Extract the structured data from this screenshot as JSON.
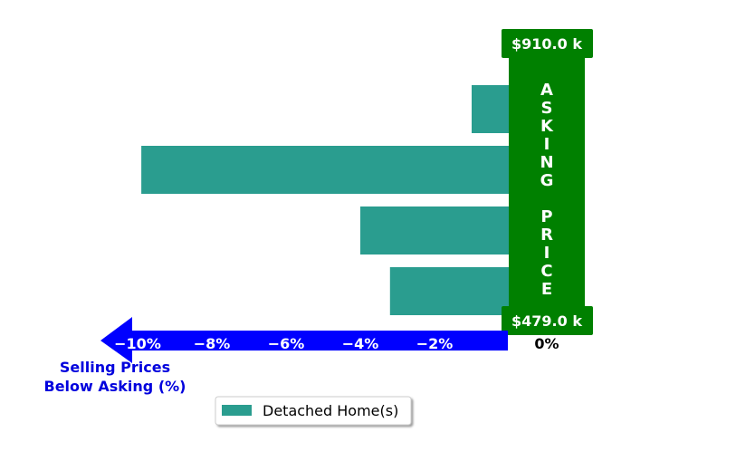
{
  "chart_data": {
    "type": "bar",
    "orientation": "horizontal",
    "series": [
      {
        "name": "Detached Home(s)",
        "values": [
          -1.0,
          -9.9,
          -4.0,
          -3.2
        ]
      }
    ],
    "xlim": [
      -11.0,
      0
    ],
    "x_ticks": [
      {
        "value": -10,
        "label": "−10%"
      },
      {
        "value": -8,
        "label": "−8%"
      },
      {
        "value": -6,
        "label": "−6%"
      },
      {
        "value": -4,
        "label": "−4%"
      },
      {
        "value": -2,
        "label": "−2%"
      },
      {
        "value": 0,
        "label": "0%"
      }
    ],
    "xlabel_lines": [
      "Selling Prices",
      "Below Asking (%)"
    ],
    "asking_price": {
      "letters": [
        "A",
        "S",
        "K",
        "I",
        "N",
        "G",
        "",
        "P",
        "R",
        "I",
        "C",
        "E"
      ],
      "top_label": "$910.0 k",
      "bottom_label": "$479.0 k"
    },
    "legend": {
      "placement": "bottom-center",
      "label": "Detached Home(s)"
    },
    "grid": false
  },
  "colors": {
    "bar": "#2a9d8f",
    "asking_panel": "#008000",
    "axis_arrow": "#0000ff",
    "tick_text": "#ffffff",
    "zero_tick_text": "#000000",
    "xlabel_text": "#0000dd"
  }
}
